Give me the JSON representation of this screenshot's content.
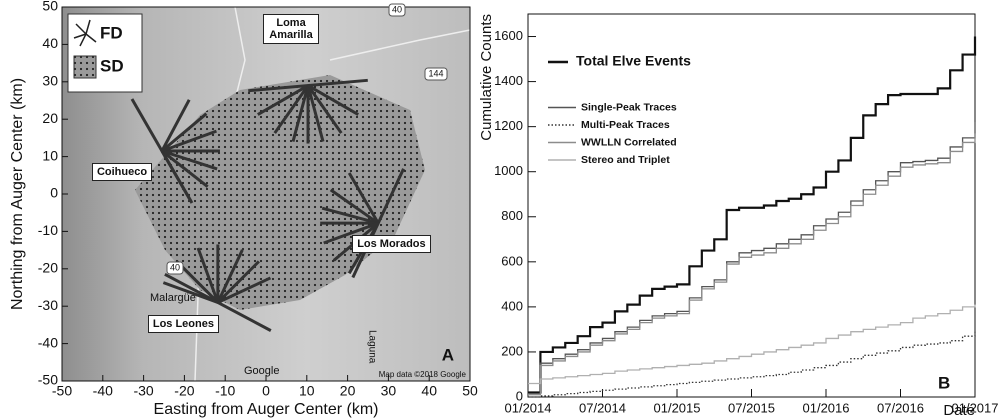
{
  "chart_data": [
    {
      "type": "map",
      "xlabel": "Easting from Auger Center (km)",
      "ylabel": "Northing from Auger Center (km)",
      "xlim": [
        -50,
        50
      ],
      "ylim": [
        -50,
        50
      ],
      "xticks": [
        -50,
        -40,
        -30,
        -20,
        -10,
        0,
        10,
        20,
        30,
        40,
        50
      ],
      "yticks": [
        -50,
        -40,
        -30,
        -20,
        -10,
        0,
        10,
        20,
        30,
        40,
        50
      ],
      "legend_labels": [
        "FD",
        "SD"
      ],
      "sites": [
        {
          "name": "Coihueco",
          "x": -25.5,
          "y": 11.5
        },
        {
          "name": "Loma Amarilla",
          "x": 10.3,
          "y": 29
        },
        {
          "name": "Los Morados",
          "x": 27.5,
          "y": -7.8
        },
        {
          "name": "Los Leones",
          "x": -11.8,
          "y": -29
        }
      ],
      "roads": [
        "40",
        "144",
        "40"
      ],
      "places": [
        "Malargüe",
        "Laguna"
      ],
      "google": "Google",
      "attribution": "Map data ©2018 Google",
      "panel_label": "A"
    },
    {
      "type": "line",
      "step": true,
      "xlabel": "Date",
      "ylabel": "Cumulative Counts",
      "x": [
        "01/2014",
        "02/2014",
        "03/2014",
        "04/2014",
        "05/2014",
        "06/2014",
        "07/2014",
        "08/2014",
        "09/2014",
        "10/2014",
        "11/2014",
        "12/2014",
        "01/2015",
        "02/2015",
        "03/2015",
        "04/2015",
        "05/2015",
        "06/2015",
        "07/2015",
        "08/2015",
        "09/2015",
        "10/2015",
        "11/2015",
        "12/2015",
        "01/2016",
        "02/2016",
        "03/2016",
        "04/2016",
        "05/2016",
        "06/2016",
        "07/2016",
        "08/2016",
        "09/2016",
        "10/2016",
        "11/2016",
        "12/2016",
        "01/2017"
      ],
      "xlim": [
        "01/2014",
        "01/2017"
      ],
      "xticks": [
        "01/2014",
        "07/2014",
        "01/2015",
        "07/2015",
        "01/2016",
        "07/2016",
        "01/2017"
      ],
      "ylim": [
        0,
        1700
      ],
      "yticks": [
        0,
        200,
        400,
        600,
        800,
        1000,
        1200,
        1400,
        1600
      ],
      "legend": "upper left",
      "panel_label": "B",
      "series": [
        {
          "name": "Total Elve Events",
          "color": "#111111",
          "style": "solid",
          "values": [
            20,
            200,
            220,
            240,
            270,
            310,
            330,
            380,
            410,
            450,
            480,
            490,
            500,
            580,
            650,
            700,
            830,
            840,
            840,
            850,
            870,
            880,
            900,
            930,
            1000,
            1050,
            1150,
            1250,
            1300,
            1340,
            1345,
            1345,
            1345,
            1370,
            1450,
            1520,
            1600
          ]
        },
        {
          "name": "Single-Peak Traces",
          "color": "#555555",
          "style": "solid",
          "values": [
            15,
            150,
            170,
            190,
            210,
            240,
            260,
            290,
            310,
            340,
            360,
            370,
            380,
            440,
            490,
            520,
            600,
            640,
            650,
            660,
            680,
            700,
            720,
            760,
            790,
            820,
            870,
            920,
            960,
            1000,
            1040,
            1045,
            1050,
            1060,
            1110,
            1150,
            1220
          ]
        },
        {
          "name": "Multi-Peak Traces",
          "color": "#333333",
          "style": "dotted",
          "values": [
            0,
            5,
            10,
            15,
            20,
            25,
            30,
            35,
            40,
            45,
            50,
            55,
            60,
            65,
            70,
            75,
            80,
            85,
            90,
            95,
            100,
            110,
            120,
            130,
            140,
            155,
            170,
            185,
            195,
            205,
            220,
            230,
            235,
            240,
            250,
            270,
            290
          ]
        },
        {
          "name": "WWLLN Correlated",
          "color": "#8c8c8c",
          "style": "solid",
          "values": [
            10,
            140,
            160,
            180,
            200,
            230,
            250,
            280,
            300,
            330,
            350,
            360,
            370,
            430,
            480,
            510,
            590,
            620,
            630,
            640,
            660,
            680,
            700,
            740,
            770,
            800,
            850,
            900,
            940,
            980,
            1020,
            1030,
            1035,
            1040,
            1090,
            1130,
            1170
          ]
        },
        {
          "name": "Stereo and Triplet",
          "color": "#b0b0b0",
          "style": "solid",
          "values": [
            60,
            80,
            85,
            90,
            95,
            100,
            105,
            115,
            120,
            125,
            130,
            135,
            140,
            145,
            150,
            160,
            170,
            180,
            190,
            200,
            210,
            220,
            230,
            240,
            260,
            275,
            290,
            300,
            310,
            320,
            330,
            350,
            360,
            370,
            385,
            400,
            410
          ]
        }
      ]
    }
  ]
}
